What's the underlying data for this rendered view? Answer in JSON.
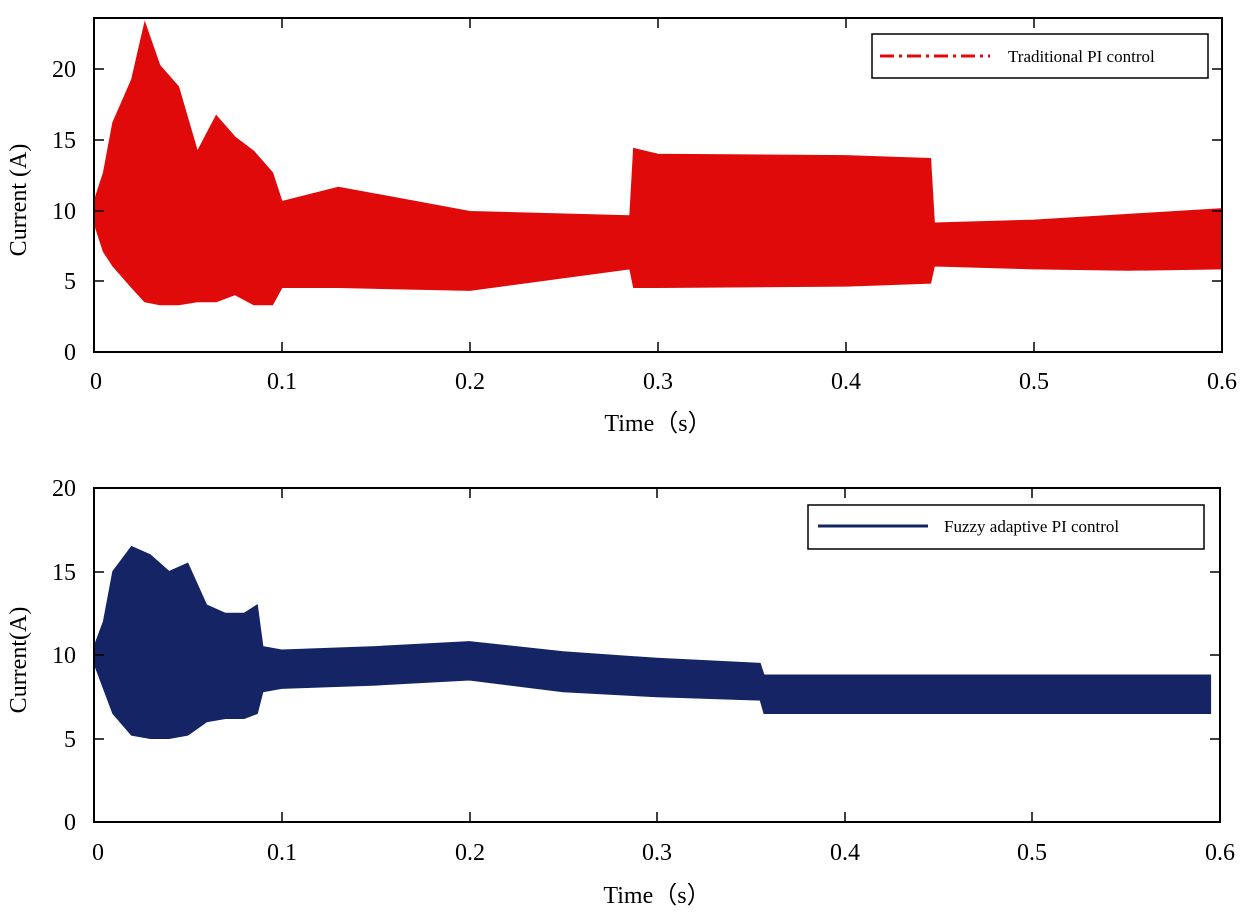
{
  "chart_data": [
    {
      "type": "line",
      "title": "",
      "xlabel": "Time（s）",
      "ylabel": "Current (A)",
      "xlim": [
        0,
        0.6
      ],
      "ylim": [
        0,
        23.3
      ],
      "xticks": [
        0,
        0.1,
        0.2,
        0.3,
        0.4,
        0.5,
        0.6
      ],
      "xtick_labels": [
        "0",
        "0.1",
        "0.2",
        "0.3",
        "0.4",
        "0.5",
        "0.6"
      ],
      "yticks": [
        0,
        5,
        10,
        15,
        20
      ],
      "ytick_labels": [
        "0",
        "5",
        "10",
        "15",
        "20"
      ],
      "grid": false,
      "legend_position": "top-right",
      "series": [
        {
          "name": "Traditional PI control",
          "color": "#e00a0a",
          "line_style": "dash-dot",
          "envelope": {
            "x": [
              0,
              0.005,
              0.01,
              0.02,
              0.027,
              0.035,
              0.045,
              0.055,
              0.065,
              0.075,
              0.085,
              0.095,
              0.1,
              0.13,
              0.2,
              0.285,
              0.287,
              0.3,
              0.4,
              0.445,
              0.447,
              0.5,
              0.55,
              0.6
            ],
            "upper": [
              10.5,
              12.5,
              16,
              19,
              23,
              20,
              18.5,
              14,
              16.5,
              15,
              14,
              12.5,
              10.5,
              11.5,
              9.8,
              9.5,
              14.2,
              13.8,
              13.7,
              13.5,
              9,
              9.2,
              9.6,
              10
            ],
            "lower": [
              9,
              7,
              6,
              4.5,
              3.5,
              3.3,
              3.3,
              3.5,
              3.5,
              4,
              3.3,
              3.3,
              4.5,
              4.5,
              4.3,
              5.8,
              4.5,
              4.5,
              4.6,
              4.8,
              6,
              5.8,
              5.7,
              5.8
            ]
          }
        }
      ]
    },
    {
      "type": "line",
      "title": "",
      "xlabel": "Time（s）",
      "ylabel": "Current(A)",
      "xlim": [
        0,
        0.6
      ],
      "ylim": [
        0,
        20
      ],
      "xticks": [
        0,
        0.1,
        0.2,
        0.3,
        0.4,
        0.5,
        0.6
      ],
      "xtick_labels": [
        "0",
        "0.1",
        "0.2",
        "0.3",
        "0.4",
        "0.5",
        "0.6"
      ],
      "yticks": [
        0,
        5,
        10,
        15,
        20
      ],
      "ytick_labels": [
        "0",
        "5",
        "10",
        "15",
        "20"
      ],
      "grid": false,
      "legend_position": "top-right",
      "series": [
        {
          "name": "Fuzzy adaptive PI control",
          "color": "#142464",
          "line_style": "solid",
          "envelope": {
            "x": [
              0,
              0.005,
              0.01,
              0.02,
              0.03,
              0.04,
              0.05,
              0.06,
              0.07,
              0.08,
              0.087,
              0.09,
              0.1,
              0.15,
              0.2,
              0.25,
              0.3,
              0.355,
              0.357,
              0.4,
              0.5,
              0.595
            ],
            "upper": [
              10.5,
              12,
              15,
              16.5,
              16,
              15,
              15.5,
              13,
              12.5,
              12.5,
              13,
              10.5,
              10.3,
              10.5,
              10.8,
              10.2,
              9.8,
              9.5,
              8.8,
              8.8,
              8.8,
              8.8
            ],
            "lower": [
              9.5,
              8,
              6.5,
              5.2,
              5,
              5,
              5.2,
              6,
              6.2,
              6.2,
              6.5,
              7.8,
              8,
              8.2,
              8.5,
              7.8,
              7.5,
              7.3,
              6.5,
              6.5,
              6.5,
              6.5
            ]
          }
        }
      ]
    }
  ]
}
